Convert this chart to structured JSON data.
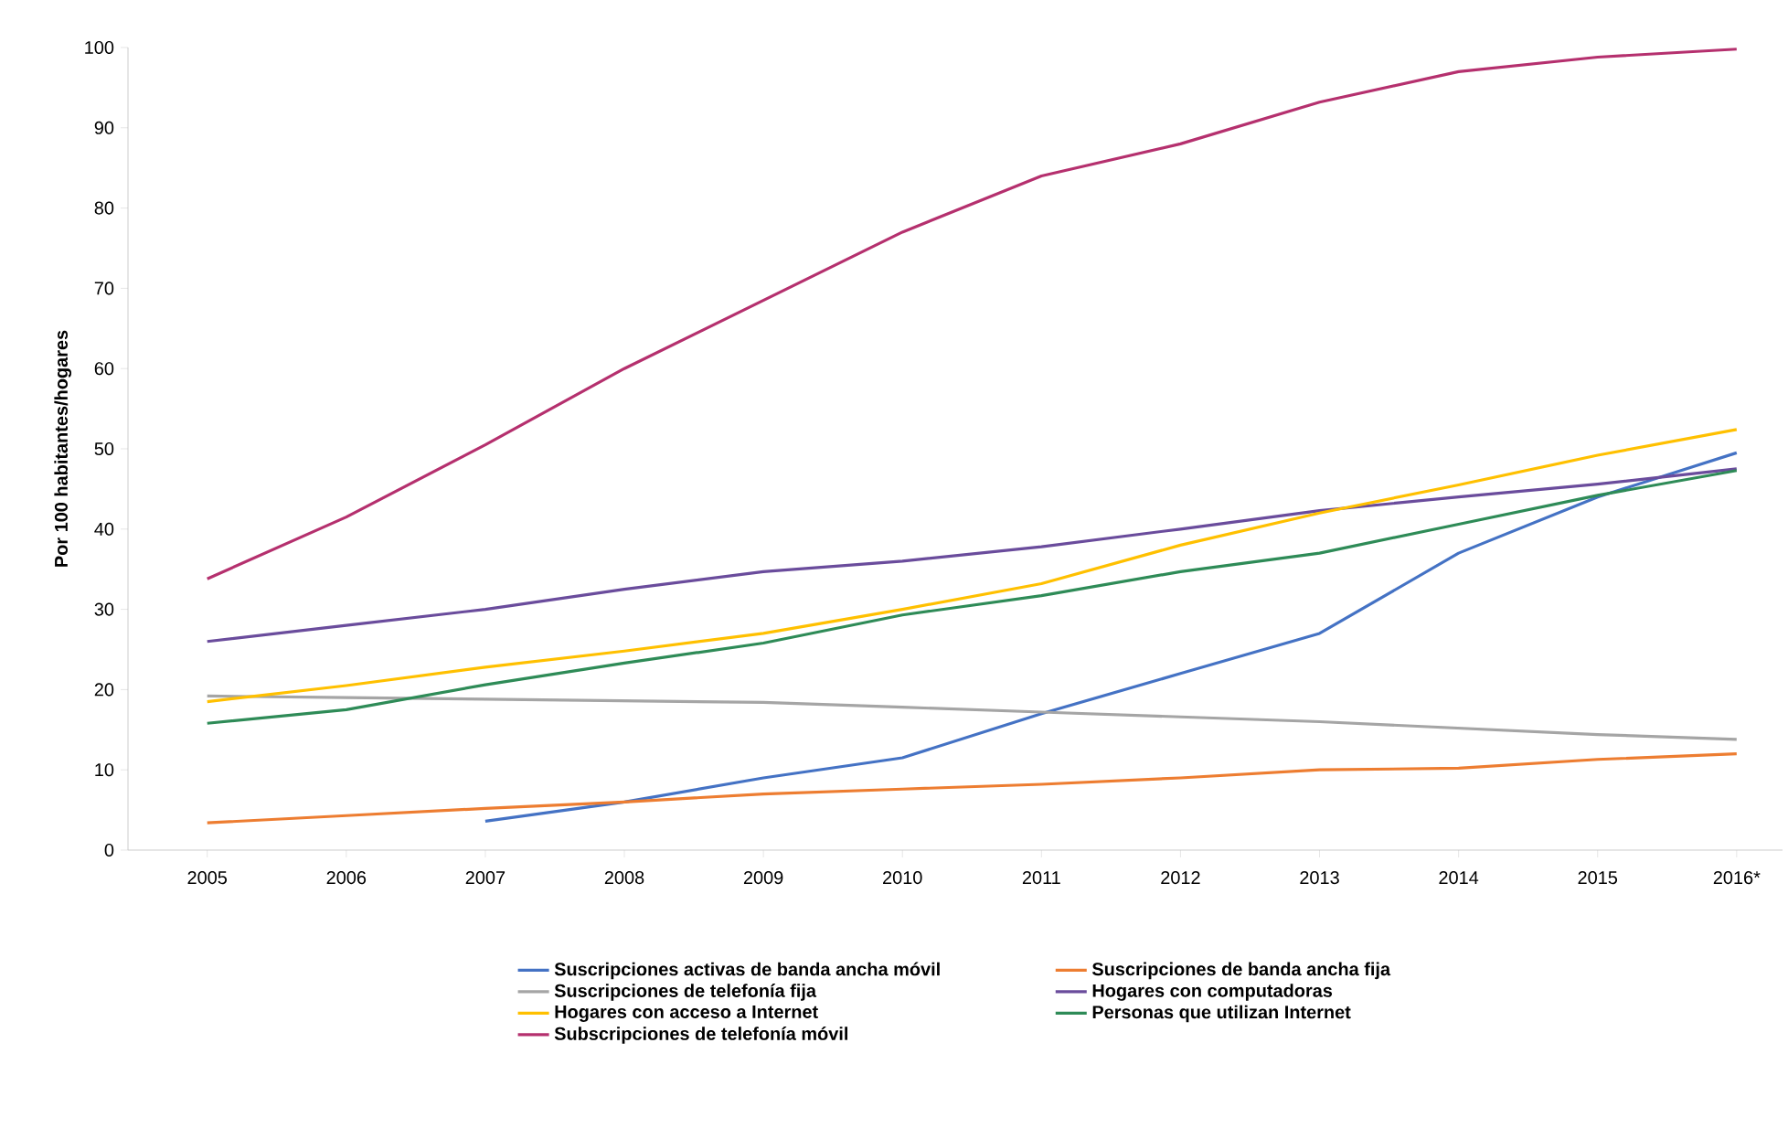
{
  "chart_data": {
    "type": "line",
    "ylabel": "Por 100 habitantes/hogares",
    "categories": [
      "2005",
      "2006",
      "2007",
      "2008",
      "2009",
      "2010",
      "2011",
      "2012",
      "2013",
      "2014",
      "2015",
      "2016*"
    ],
    "ylim": [
      0,
      100
    ],
    "yticks": [
      0,
      10,
      20,
      30,
      40,
      50,
      60,
      70,
      80,
      90,
      100
    ],
    "grid": false,
    "legend": "bottom",
    "marker": "none",
    "line_style": "solid",
    "series": [
      {
        "name": "Suscripciones activas de banda ancha móvil",
        "color": "#4472c4",
        "values": [
          null,
          null,
          3.6,
          6,
          9,
          11.5,
          17,
          22,
          27,
          37,
          44,
          49.5
        ]
      },
      {
        "name": "Suscripciones de banda ancha fija",
        "color": "#ed7d31",
        "values": [
          3.4,
          4.3,
          5.2,
          6,
          7,
          7.6,
          8.2,
          9,
          10,
          10.2,
          11.3,
          12
        ]
      },
      {
        "name": "Suscripciones de telefonía fija",
        "color": "#a5a5a5",
        "values": [
          19.2,
          19,
          18.8,
          18.6,
          18.4,
          17.8,
          17.2,
          16.6,
          16,
          15.2,
          14.4,
          13.8
        ]
      },
      {
        "name": "Hogares con computadoras",
        "color": "#6a4c9c",
        "values": [
          26,
          28,
          30,
          32.5,
          34.7,
          36,
          37.8,
          40,
          42.3,
          44,
          45.6,
          47.5
        ]
      },
      {
        "name": "Hogares con acceso a Internet",
        "color": "#ffc000",
        "values": [
          18.5,
          20.5,
          22.8,
          24.8,
          27,
          30,
          33.2,
          38,
          42,
          45.5,
          49.2,
          52.4
        ]
      },
      {
        "name": "Personas que utilizan Internet",
        "color": "#2e8b57",
        "values": [
          15.8,
          17.5,
          20.6,
          23.3,
          25.8,
          29.3,
          31.7,
          34.7,
          37,
          40.6,
          44.2,
          47.3
        ]
      },
      {
        "name": "Subscripciones de telefonía móvil",
        "color": "#b5306e",
        "values": [
          33.8,
          41.5,
          50.5,
          60,
          68.5,
          77,
          84,
          88,
          93.2,
          97,
          98.8,
          99.8
        ]
      }
    ]
  }
}
